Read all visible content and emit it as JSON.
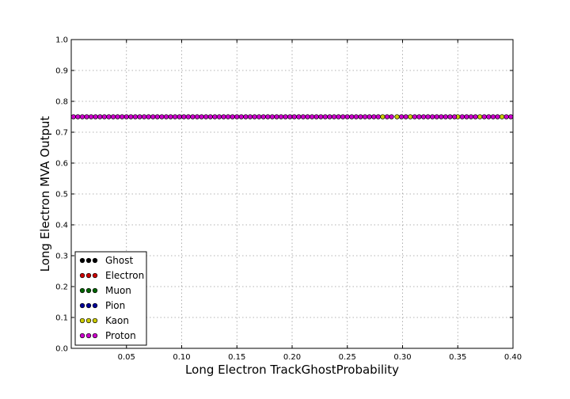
{
  "chart_data": {
    "type": "scatter",
    "xlabel": "Long Electron TrackGhostProbability",
    "ylabel": "Long Electron MVA Output",
    "xlim": [
      0.0,
      0.4
    ],
    "ylim": [
      0.0,
      1.0
    ],
    "xticks": [
      0.05,
      0.1,
      0.15,
      0.2,
      0.25,
      0.3,
      0.35,
      0.4
    ],
    "xtick_labels": [
      "0.05",
      "0.10",
      "0.15",
      "0.20",
      "0.25",
      "0.30",
      "0.35",
      "0.40"
    ],
    "yticks": [
      0.0,
      0.1,
      0.2,
      0.3,
      0.4,
      0.5,
      0.6,
      0.7,
      0.8,
      0.9,
      1.0
    ],
    "ytick_labels": [
      "0.0",
      "0.1",
      "0.2",
      "0.3",
      "0.4",
      "0.5",
      "0.6",
      "0.7",
      "0.8",
      "0.9",
      "1.0"
    ],
    "grid": true,
    "legend_position": "lower-left",
    "series": [
      {
        "name": "Ghost",
        "color": "#000000",
        "x": [],
        "y": []
      },
      {
        "name": "Electron",
        "color": "#cc0000",
        "x": [],
        "y": []
      },
      {
        "name": "Muon",
        "color": "#006600",
        "x": [],
        "y": []
      },
      {
        "name": "Pion",
        "color": "#000099",
        "x": [],
        "y": []
      },
      {
        "name": "Kaon",
        "color": "#cccc00",
        "x": [
          0.282,
          0.295,
          0.307,
          0.35,
          0.37,
          0.39
        ],
        "y": [
          0.75,
          0.75,
          0.75,
          0.75,
          0.75,
          0.75
        ]
      },
      {
        "name": "Proton",
        "color": "#cc00cc",
        "x": [
          0.002,
          0.006,
          0.01,
          0.014,
          0.018,
          0.022,
          0.026,
          0.03,
          0.034,
          0.038,
          0.042,
          0.046,
          0.05,
          0.054,
          0.058,
          0.062,
          0.066,
          0.07,
          0.074,
          0.078,
          0.082,
          0.086,
          0.09,
          0.094,
          0.098,
          0.102,
          0.106,
          0.11,
          0.114,
          0.118,
          0.122,
          0.126,
          0.13,
          0.134,
          0.138,
          0.142,
          0.146,
          0.15,
          0.154,
          0.158,
          0.162,
          0.166,
          0.17,
          0.174,
          0.178,
          0.182,
          0.186,
          0.19,
          0.194,
          0.198,
          0.202,
          0.206,
          0.21,
          0.214,
          0.218,
          0.222,
          0.226,
          0.23,
          0.234,
          0.238,
          0.242,
          0.246,
          0.25,
          0.254,
          0.258,
          0.262,
          0.266,
          0.27,
          0.274,
          0.278,
          0.286,
          0.29,
          0.299,
          0.303,
          0.311,
          0.315,
          0.319,
          0.323,
          0.327,
          0.331,
          0.335,
          0.339,
          0.343,
          0.347,
          0.354,
          0.358,
          0.362,
          0.366,
          0.374,
          0.378,
          0.382,
          0.386,
          0.394,
          0.398
        ],
        "y": [
          0.75,
          0.75,
          0.75,
          0.75,
          0.75,
          0.75,
          0.75,
          0.75,
          0.75,
          0.75,
          0.75,
          0.75,
          0.75,
          0.75,
          0.75,
          0.75,
          0.75,
          0.75,
          0.75,
          0.75,
          0.75,
          0.75,
          0.75,
          0.75,
          0.75,
          0.75,
          0.75,
          0.75,
          0.75,
          0.75,
          0.75,
          0.75,
          0.75,
          0.75,
          0.75,
          0.75,
          0.75,
          0.75,
          0.75,
          0.75,
          0.75,
          0.75,
          0.75,
          0.75,
          0.75,
          0.75,
          0.75,
          0.75,
          0.75,
          0.75,
          0.75,
          0.75,
          0.75,
          0.75,
          0.75,
          0.75,
          0.75,
          0.75,
          0.75,
          0.75,
          0.75,
          0.75,
          0.75,
          0.75,
          0.75,
          0.75,
          0.75,
          0.75,
          0.75,
          0.75,
          0.75,
          0.75,
          0.75,
          0.75,
          0.75,
          0.75,
          0.75,
          0.75,
          0.75,
          0.75,
          0.75,
          0.75,
          0.75,
          0.75,
          0.75,
          0.75,
          0.75,
          0.75,
          0.75,
          0.75,
          0.75,
          0.75,
          0.75,
          0.75
        ]
      }
    ]
  }
}
